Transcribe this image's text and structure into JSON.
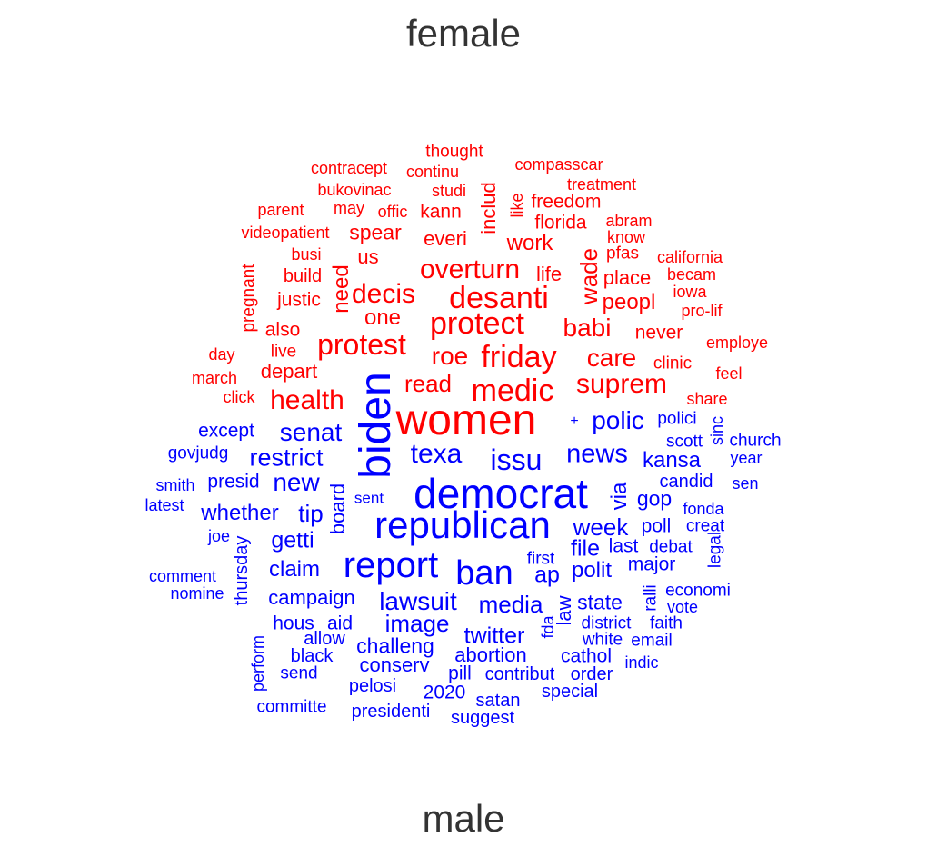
{
  "titles": {
    "top": "female",
    "bottom": "male"
  },
  "colors": {
    "female": "#ff0000",
    "male": "#0000ff",
    "title": "#333333"
  },
  "female_words": [
    "thought",
    "contracept",
    "continu",
    "compasscar",
    "includ",
    "studi",
    "bukovinac",
    "treatment",
    "parent",
    "may",
    "offic",
    "kann",
    "like",
    "freedom",
    "florida",
    "abram",
    "videopatient",
    "spear",
    "everi",
    "work",
    "know",
    "busi",
    "us",
    "pfas",
    "california",
    "pregnant",
    "build",
    "overturn",
    "life",
    "becam",
    "need",
    "wade",
    "place",
    "justic",
    "decis",
    "desanti",
    "iowa",
    "one",
    "peopl",
    "pro-lif",
    "also",
    "protect",
    "babi",
    "never",
    "day",
    "live",
    "protest",
    "employe",
    "roe",
    "friday",
    "care",
    "march",
    "depart",
    "read",
    "clinic",
    "feel",
    "medic",
    "suprem",
    "click",
    "health",
    "share",
    "women"
  ],
  "male_words": [
    "biden",
    "polici",
    "+",
    "polic",
    "sinc",
    "except",
    "senat",
    "scott",
    "church",
    "govjudg",
    "texa",
    "restrict",
    "issu",
    "news",
    "year",
    "kansa",
    "smith",
    "presid",
    "new",
    "board",
    "candid",
    "sen",
    "democrat",
    "via",
    "latest",
    "sent",
    "gop",
    "fonda",
    "whether",
    "tip",
    "republican",
    "week",
    "poll",
    "creat",
    "joe",
    "getti",
    "thursday",
    "file",
    "last",
    "debat",
    "legal",
    "comment",
    "report",
    "first",
    "claim",
    "ban",
    "ap",
    "polit",
    "major",
    "ralli",
    "economi",
    "nomine",
    "campaign",
    "lawsuit",
    "media",
    "law",
    "state",
    "vote",
    "hous",
    "aid",
    "image",
    "fda",
    "district",
    "faith",
    "allow",
    "twitter",
    "perform",
    "white",
    "email",
    "challeng",
    "black",
    "abortion",
    "cathol",
    "indic",
    "send",
    "conserv",
    "pill",
    "contribut",
    "order",
    "pelosi",
    "2020",
    "special",
    "satan",
    "committe",
    "presidenti",
    "suggest"
  ]
}
